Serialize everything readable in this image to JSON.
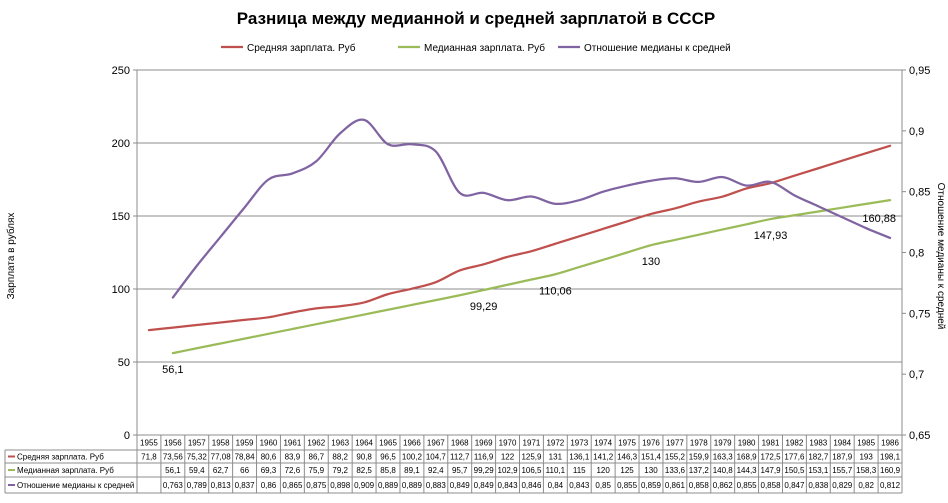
{
  "chart_data": {
    "type": "line",
    "title": "Разница между медианной и средней зарплатой в СССР",
    "ylabel": "Зарплата  в рублях",
    "y2label": "Отношение медианы к средней",
    "ylim": [
      0,
      250
    ],
    "yticks": [
      "0",
      "50",
      "100",
      "150",
      "200",
      "250"
    ],
    "y2lim": [
      0.65,
      0.95
    ],
    "y2ticks": [
      "0,65",
      "0,7",
      "0,75",
      "0,8",
      "0,85",
      "0,9",
      "0,95"
    ],
    "grid": true,
    "legend_position": "top",
    "x": [
      "1955",
      "1956",
      "1957",
      "1958",
      "1959",
      "1960",
      "1961",
      "1962",
      "1963",
      "1964",
      "1965",
      "1966",
      "1967",
      "1968",
      "1969",
      "1970",
      "1971",
      "1972",
      "1973",
      "1974",
      "1975",
      "1976",
      "1977",
      "1978",
      "1979",
      "1980",
      "1981",
      "1982",
      "1983",
      "1984",
      "1985",
      "1986"
    ],
    "series": [
      {
        "name": "Средняя зарплата. Руб",
        "axis": "left",
        "color": "#c0504d",
        "values": [
          71.8,
          73.56,
          75.32,
          77.08,
          78.84,
          80.6,
          83.9,
          86.7,
          88.2,
          90.8,
          96.5,
          100.2,
          104.7,
          112.7,
          116.9,
          122,
          125.9,
          131,
          136.1,
          141.2,
          146.3,
          151.4,
          155.2,
          159.9,
          163.3,
          168.9,
          172.5,
          177.6,
          182.7,
          187.9,
          193,
          198.1
        ],
        "table_values": [
          "71,8",
          "73,56",
          "75,32",
          "77,08",
          "78,84",
          "80,6",
          "83,9",
          "86,7",
          "88,2",
          "90,8",
          "96,5",
          "100,2",
          "104,7",
          "112,7",
          "116,9",
          "122",
          "125,9",
          "131",
          "136,1",
          "141,2",
          "146,3",
          "151,4",
          "155,2",
          "159,9",
          "163,3",
          "168,9",
          "172,5",
          "177,6",
          "182,7",
          "187,9",
          "193",
          "198,1"
        ]
      },
      {
        "name": "Медианная зарплата. Руб",
        "axis": "left",
        "color": "#9bbb59",
        "values": [
          null,
          56.1,
          59.4,
          62.7,
          66,
          69.3,
          72.6,
          75.9,
          79.2,
          82.5,
          85.8,
          89.1,
          92.4,
          95.7,
          99.29,
          102.9,
          106.5,
          110.1,
          115,
          120,
          125,
          130,
          133.6,
          137.2,
          140.8,
          144.3,
          147.9,
          150.5,
          153.1,
          155.7,
          158.3,
          160.9
        ],
        "table_values": [
          "",
          "56,1",
          "59,4",
          "62,7",
          "66",
          "69,3",
          "72,6",
          "75,9",
          "79,2",
          "82,5",
          "85,8",
          "89,1",
          "92,4",
          "95,7",
          "99,29",
          "102,9",
          "106,5",
          "110,1",
          "115",
          "120",
          "125",
          "130",
          "133,6",
          "137,2",
          "140,8",
          "144,3",
          "147,9",
          "150,5",
          "153,1",
          "155,7",
          "158,3",
          "160,9"
        ]
      },
      {
        "name": "Отношение медианы к средней",
        "axis": "right",
        "color": "#8064a2",
        "values": [
          null,
          0.763,
          0.789,
          0.813,
          0.837,
          0.86,
          0.865,
          0.875,
          0.898,
          0.909,
          0.889,
          0.889,
          0.883,
          0.849,
          0.849,
          0.843,
          0.846,
          0.84,
          0.843,
          0.85,
          0.855,
          0.859,
          0.861,
          0.858,
          0.862,
          0.855,
          0.858,
          0.847,
          0.838,
          0.829,
          0.82,
          0.812
        ],
        "table_values": [
          "",
          "0,763",
          "0,789",
          "0,813",
          "0,837",
          "0,86",
          "0,865",
          "0,875",
          "0,898",
          "0,909",
          "0,889",
          "0,889",
          "0,883",
          "0,849",
          "0,849",
          "0,843",
          "0,846",
          "0,84",
          "0,843",
          "0,85",
          "0,855",
          "0,859",
          "0,861",
          "0,858",
          "0,862",
          "0,855",
          "0,858",
          "0,847",
          "0,838",
          "0,829",
          "0,82",
          "0,812"
        ]
      }
    ],
    "annotations": [
      {
        "series": 1,
        "index": 1,
        "text": "56,1"
      },
      {
        "series": 1,
        "index": 14,
        "text": "99,29"
      },
      {
        "series": 1,
        "index": 17,
        "text": "110,06"
      },
      {
        "series": 1,
        "index": 21,
        "text": "130"
      },
      {
        "series": 1,
        "index": 26,
        "text": "147,93"
      },
      {
        "series": 1,
        "index": 31,
        "text": "160,88"
      }
    ]
  }
}
